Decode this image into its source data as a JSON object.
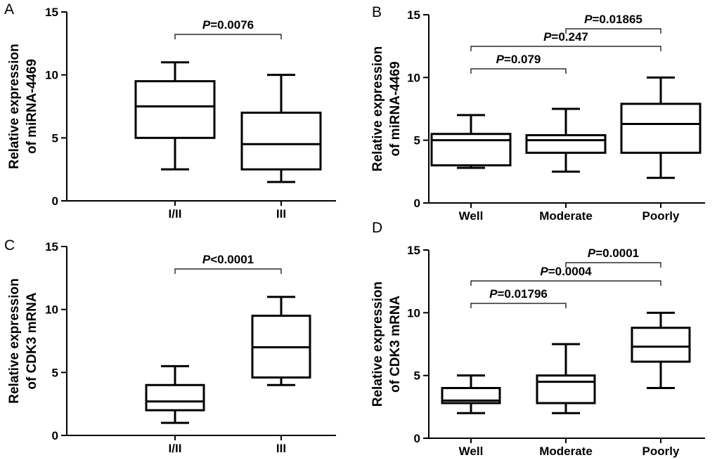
{
  "chart_data": [
    {
      "type": "box",
      "panel": "A",
      "ylabel_line1": "Relative expression",
      "ylabel_line2": "of miRNA-4469",
      "ylim": [
        0,
        15
      ],
      "yticks": [
        0,
        5,
        10,
        15
      ],
      "categories": [
        "I/II",
        "III"
      ],
      "boxes": [
        {
          "min": 2.5,
          "q1": 5.0,
          "median": 7.5,
          "q3": 9.5,
          "max": 11.0
        },
        {
          "min": 1.5,
          "q1": 2.5,
          "median": 4.5,
          "q3": 7.0,
          "max": 10.0
        }
      ],
      "comparisons": [
        {
          "from": 0,
          "to": 1,
          "p_symbol": "P",
          "p_value": "=0.0076",
          "level": 1
        }
      ]
    },
    {
      "type": "box",
      "panel": "B",
      "ylabel_line1": "Relative expression",
      "ylabel_line2": "of miRNA-4469",
      "ylim": [
        0,
        15
      ],
      "yticks": [
        0,
        5,
        10,
        15
      ],
      "categories": [
        "Well",
        "Moderate",
        "Poorly"
      ],
      "boxes": [
        {
          "min": 2.8,
          "q1": 3.0,
          "median": 5.0,
          "q3": 5.5,
          "max": 7.0
        },
        {
          "min": 2.5,
          "q1": 4.0,
          "median": 5.0,
          "q3": 5.4,
          "max": 7.5
        },
        {
          "min": 2.0,
          "q1": 4.0,
          "median": 6.3,
          "q3": 7.9,
          "max": 10.0
        }
      ],
      "comparisons": [
        {
          "from": 1,
          "to": 2,
          "p_symbol": "P",
          "p_value": "=0.01865",
          "level": 3
        },
        {
          "from": 0,
          "to": 2,
          "p_symbol": "P",
          "p_value": "=0.247",
          "level": 2
        },
        {
          "from": 0,
          "to": 1,
          "p_symbol": "P",
          "p_value": "=0.079",
          "level": 1
        }
      ]
    },
    {
      "type": "box",
      "panel": "C",
      "ylabel_line1": "Relative expression",
      "ylabel_line2": "of CDK3 mRNA",
      "ylim": [
        0,
        15
      ],
      "yticks": [
        0,
        5,
        10,
        15
      ],
      "categories": [
        "I/II",
        "III"
      ],
      "boxes": [
        {
          "min": 1.0,
          "q1": 2.0,
          "median": 2.7,
          "q3": 4.0,
          "max": 5.5
        },
        {
          "min": 4.0,
          "q1": 4.6,
          "median": 7.0,
          "q3": 9.5,
          "max": 11.0
        }
      ],
      "comparisons": [
        {
          "from": 0,
          "to": 1,
          "p_symbol": "P",
          "p_value": "<0.0001",
          "level": 1
        }
      ]
    },
    {
      "type": "box",
      "panel": "D",
      "ylabel_line1": "Relative expression",
      "ylabel_line2": "of CDK3 mRNA",
      "ylim": [
        0,
        15
      ],
      "yticks": [
        0,
        5,
        10,
        15
      ],
      "categories": [
        "Well",
        "Moderate",
        "Poorly"
      ],
      "boxes": [
        {
          "min": 2.0,
          "q1": 2.8,
          "median": 3.0,
          "q3": 4.0,
          "max": 5.0
        },
        {
          "min": 2.0,
          "q1": 2.8,
          "median": 4.5,
          "q3": 5.0,
          "max": 7.5
        },
        {
          "min": 4.0,
          "q1": 6.1,
          "median": 7.3,
          "q3": 8.8,
          "max": 10.0
        }
      ],
      "comparisons": [
        {
          "from": 1,
          "to": 2,
          "p_symbol": "P",
          "p_value": "=0.0001",
          "level": 3
        },
        {
          "from": 0,
          "to": 2,
          "p_symbol": "P",
          "p_value": "=0.0004",
          "level": 2
        },
        {
          "from": 0,
          "to": 1,
          "p_symbol": "P",
          "p_value": "=0.01796",
          "level": 1
        }
      ]
    }
  ]
}
